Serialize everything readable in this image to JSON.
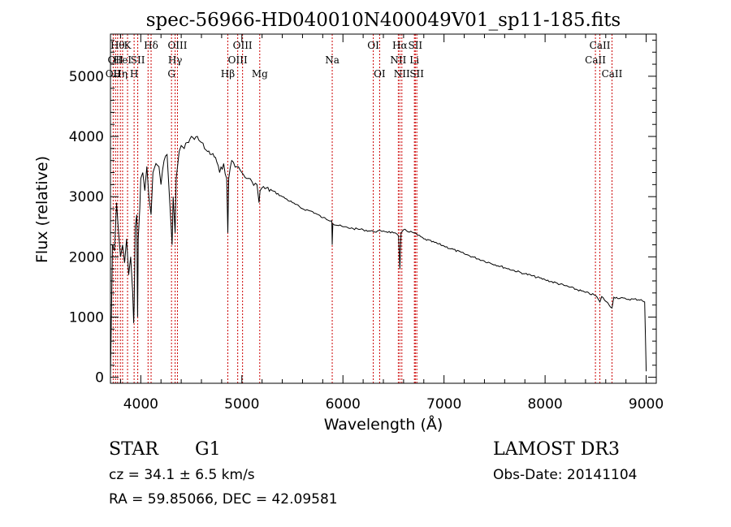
{
  "chart_data": {
    "type": "line",
    "title": "spec-56966-HD040010N400049V01_sp11-185.fits",
    "xlabel": "Wavelength (Å)",
    "ylabel": "Flux (relative)",
    "xlim": [
      3700,
      9100
    ],
    "ylim": [
      -100,
      5700
    ],
    "xticks": [
      4000,
      5000,
      6000,
      7000,
      8000,
      9000
    ],
    "yticks": [
      0,
      1000,
      2000,
      3000,
      4000,
      5000
    ],
    "grid": false,
    "line_color": "#000000",
    "marker_color": "#cc0000",
    "lines": [
      {
        "wavelength": 3727,
        "label": "OII",
        "row": 2
      },
      {
        "wavelength": 3750,
        "label": "OII",
        "row": 1
      },
      {
        "wavelength": 3771,
        "label": "Hθ",
        "row": 0
      },
      {
        "wavelength": 3798,
        "label": "Hη",
        "row": 2
      },
      {
        "wavelength": 3820,
        "label": "HeI",
        "row": 1
      },
      {
        "wavelength": 3869,
        "label": "K",
        "row": 0
      },
      {
        "wavelength": 3934,
        "label": "H",
        "row": 2
      },
      {
        "wavelength": 3970,
        "label": "SII",
        "row": 1
      },
      {
        "wavelength": 4102,
        "label": "Hδ",
        "row": 0
      },
      {
        "wavelength": 4072,
        "label": "",
        "row": 1
      },
      {
        "wavelength": 4304,
        "label": "G",
        "row": 2
      },
      {
        "wavelength": 4340,
        "label": "Hγ",
        "row": 1
      },
      {
        "wavelength": 4363,
        "label": "OIII",
        "row": 0
      },
      {
        "wavelength": 4861,
        "label": "Hβ",
        "row": 2
      },
      {
        "wavelength": 4959,
        "label": "OIII",
        "row": 1
      },
      {
        "wavelength": 5007,
        "label": "OIII",
        "row": 0
      },
      {
        "wavelength": 5177,
        "label": "Mg",
        "row": 2
      },
      {
        "wavelength": 5894,
        "label": "Na",
        "row": 1
      },
      {
        "wavelength": 6300,
        "label": "OI",
        "row": 0
      },
      {
        "wavelength": 6363,
        "label": "OI",
        "row": 2
      },
      {
        "wavelength": 6548,
        "label": "NII",
        "row": 1
      },
      {
        "wavelength": 6563,
        "label": "Hα",
        "row": 0
      },
      {
        "wavelength": 6583,
        "label": "NII",
        "row": 2
      },
      {
        "wavelength": 6707,
        "label": "Li",
        "row": 1
      },
      {
        "wavelength": 6716,
        "label": "SII",
        "row": 0
      },
      {
        "wavelength": 6731,
        "label": "SII",
        "row": 2
      },
      {
        "wavelength": 8498,
        "label": "CaII",
        "row": 1
      },
      {
        "wavelength": 8542,
        "label": "CaII",
        "row": 0
      },
      {
        "wavelength": 8662,
        "label": "CaII",
        "row": 2
      }
    ],
    "spectrum": {
      "x": [
        3700,
        3720,
        3740,
        3760,
        3780,
        3800,
        3820,
        3840,
        3860,
        3880,
        3900,
        3920,
        3930,
        3935,
        3945,
        3960,
        3968,
        3975,
        3990,
        4000,
        4020,
        4040,
        4060,
        4080,
        4102,
        4120,
        4150,
        4180,
        4200,
        4230,
        4260,
        4280,
        4300,
        4310,
        4320,
        4340,
        4350,
        4380,
        4400,
        4430,
        4460,
        4500,
        4530,
        4560,
        4600,
        4630,
        4660,
        4700,
        4740,
        4780,
        4820,
        4850,
        4861,
        4870,
        4900,
        4950,
        5000,
        5050,
        5100,
        5150,
        5170,
        5180,
        5200,
        5300,
        5400,
        5500,
        5600,
        5700,
        5800,
        5890,
        5894,
        5900,
        6000,
        6100,
        6200,
        6300,
        6400,
        6500,
        6550,
        6563,
        6575,
        6600,
        6700,
        6800,
        7000,
        7200,
        7400,
        7600,
        7800,
        8000,
        8200,
        8400,
        8500,
        8542,
        8560,
        8662,
        8680,
        8800,
        8950,
        8985,
        9000
      ],
      "y": [
        0,
        2200,
        2100,
        2900,
        2400,
        2000,
        2200,
        1900,
        2300,
        1700,
        2000,
        1400,
        900,
        1200,
        2500,
        2700,
        1000,
        2300,
        2800,
        3300,
        3400,
        3100,
        3500,
        3000,
        2700,
        3400,
        3550,
        3500,
        3200,
        3600,
        3700,
        3100,
        2500,
        2200,
        3000,
        2400,
        3300,
        3750,
        3850,
        3800,
        3900,
        4000,
        3950,
        4000,
        3900,
        3800,
        3750,
        3700,
        3650,
        3400,
        3550,
        3300,
        2400,
        3300,
        3600,
        3500,
        3400,
        3300,
        3250,
        3200,
        2900,
        3100,
        3150,
        3100,
        3000,
        2900,
        2800,
        2750,
        2650,
        2600,
        2200,
        2550,
        2500,
        2470,
        2450,
        2420,
        2430,
        2400,
        2350,
        1800,
        2400,
        2450,
        2400,
        2300,
        2180,
        2050,
        1930,
        1820,
        1720,
        1620,
        1520,
        1410,
        1360,
        1250,
        1340,
        1150,
        1330,
        1300,
        1290,
        1250,
        100
      ]
    }
  },
  "info": {
    "object_class": "STAR",
    "subclass": "G1",
    "redshift_text": "cz =  34.1 ± 6.5 km/s",
    "coords_text": "RA =  59.85066, DEC =  42.09581",
    "survey": "LAMOST DR3",
    "obs_date_text": "Obs-Date: 20141104"
  }
}
